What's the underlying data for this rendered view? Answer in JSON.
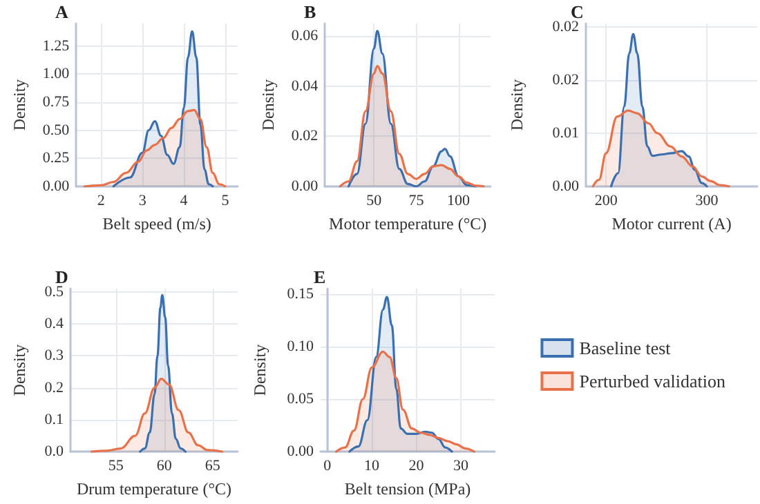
{
  "chart_data": [
    {
      "type": "area",
      "title": "A",
      "xlabel": "Belt speed (m/s)",
      "ylabel": "Density",
      "xlim": [
        1.4,
        5.3
      ],
      "xticks": [
        2,
        3,
        4,
        5
      ],
      "ylim": [
        0,
        1.45
      ],
      "yticks": [
        {
          "value": 0,
          "label": "0.00"
        },
        {
          "value": 0.25,
          "label": "0.25"
        },
        {
          "value": 0.5,
          "label": "0.50"
        },
        {
          "value": 0.75,
          "label": "0.75"
        },
        {
          "value": 1,
          "label": "1.00"
        },
        {
          "value": 1.25,
          "label": "1.25"
        }
      ],
      "grid": true,
      "marker": "none",
      "series": [
        {
          "color": "#3a6fb0",
          "x": [
            2.3,
            2.7,
            3.0,
            3.15,
            3.3,
            3.45,
            3.6,
            3.75,
            3.9,
            4.0,
            4.1,
            4.2,
            4.3,
            4.4,
            4.5,
            4.6,
            4.7
          ],
          "values": [
            0,
            0.08,
            0.3,
            0.5,
            0.58,
            0.45,
            0.28,
            0.2,
            0.35,
            0.7,
            1.15,
            1.38,
            1.15,
            0.55,
            0.15,
            0.02,
            0
          ]
        },
        {
          "color": "#e8714a",
          "x": [
            1.6,
            2.0,
            2.3,
            2.6,
            2.9,
            3.1,
            3.3,
            3.5,
            3.7,
            3.9,
            4.1,
            4.25,
            4.4,
            4.55,
            4.7,
            4.85,
            5.0
          ],
          "values": [
            0,
            0.01,
            0.04,
            0.12,
            0.22,
            0.32,
            0.37,
            0.43,
            0.52,
            0.6,
            0.67,
            0.68,
            0.6,
            0.35,
            0.12,
            0.02,
            0
          ]
        }
      ]
    },
    {
      "type": "area",
      "title": "B",
      "xlabel": "Motor temperature (°C)",
      "ylabel": "Density",
      "xlim": [
        21,
        119
      ],
      "xticks": [
        50,
        75,
        100
      ],
      "ylim": [
        0,
        0.065
      ],
      "yticks": [
        {
          "value": 0,
          "label": "0.00"
        },
        {
          "value": 0.02,
          "label": "0.02"
        },
        {
          "value": 0.04,
          "label": "0.04"
        },
        {
          "value": 0.06,
          "label": "0.06"
        }
      ],
      "grid": true,
      "marker": "none",
      "series": [
        {
          "color": "#3a6fb0",
          "x": [
            35,
            40,
            45,
            50,
            52,
            55,
            60,
            65,
            70,
            75,
            80,
            85,
            90,
            92,
            95,
            100,
            105,
            110
          ],
          "values": [
            0,
            0.005,
            0.025,
            0.055,
            0.062,
            0.053,
            0.025,
            0.007,
            0.001,
            0,
            0.002,
            0.008,
            0.014,
            0.015,
            0.012,
            0.004,
            0.0005,
            0
          ]
        },
        {
          "color": "#e8714a",
          "x": [
            30,
            35,
            40,
            45,
            50,
            52,
            55,
            60,
            65,
            70,
            75,
            80,
            85,
            90,
            95,
            100,
            105,
            110,
            115
          ],
          "values": [
            0,
            0.002,
            0.01,
            0.03,
            0.045,
            0.048,
            0.045,
            0.03,
            0.013,
            0.005,
            0.003,
            0.005,
            0.008,
            0.0085,
            0.007,
            0.004,
            0.0015,
            0.0003,
            0
          ]
        }
      ]
    },
    {
      "type": "area",
      "title": "C",
      "xlabel": "Motor current (A)",
      "ylabel": "Density",
      "xlim": [
        180,
        350
      ],
      "xticks": [
        200,
        300
      ],
      "ylim": [
        0,
        0.0245
      ],
      "yticks": [
        {
          "value": 0,
          "label": "0.00"
        },
        {
          "value": 0.008,
          "label": "0.01"
        },
        {
          "value": 0.016,
          "label": "0.02"
        },
        {
          "value": 0.024,
          "label": "0.02"
        }
      ],
      "grid": true,
      "marker": "none",
      "series": [
        {
          "color": "#3a6fb0",
          "x": [
            205,
            212,
            218,
            223,
            227,
            231,
            236,
            241,
            246,
            255,
            265,
            275,
            282,
            288,
            295,
            300
          ],
          "values": [
            0,
            0.002,
            0.012,
            0.02,
            0.0229,
            0.02,
            0.012,
            0.006,
            0.0046,
            0.0048,
            0.005,
            0.0053,
            0.0045,
            0.0025,
            0.0005,
            0
          ]
        },
        {
          "color": "#e8714a",
          "x": [
            187,
            193,
            200,
            211,
            222,
            231,
            242,
            251,
            264,
            275,
            286,
            295,
            304,
            313,
            322
          ],
          "values": [
            0,
            0.001,
            0.005,
            0.0105,
            0.0114,
            0.011,
            0.0095,
            0.008,
            0.006,
            0.0045,
            0.003,
            0.0015,
            0.0008,
            0.0002,
            0
          ]
        }
      ]
    },
    {
      "type": "area",
      "title": "D",
      "xlabel": "Drum temperature (°C)",
      "ylabel": "Density",
      "xlim": [
        50.3,
        67.6
      ],
      "xticks": [
        55,
        60,
        65
      ],
      "ylim": [
        0,
        0.51
      ],
      "yticks": [
        {
          "value": 0,
          "label": "0.0"
        },
        {
          "value": 0.1,
          "label": "0.1"
        },
        {
          "value": 0.2,
          "label": "0.2"
        },
        {
          "value": 0.3,
          "label": "0.3"
        },
        {
          "value": 0.4,
          "label": "0.4"
        },
        {
          "value": 0.5,
          "label": "0.5"
        }
      ],
      "grid": true,
      "marker": "none",
      "series": [
        {
          "color": "#3a6fb0",
          "x": [
            57.5,
            58,
            58.5,
            59,
            59.3,
            59.6,
            59.8,
            60.1,
            60.4,
            60.8,
            61.2,
            61.7,
            62.2
          ],
          "values": [
            0,
            0.01,
            0.06,
            0.18,
            0.3,
            0.45,
            0.49,
            0.42,
            0.27,
            0.12,
            0.04,
            0.01,
            0
          ]
        },
        {
          "color": "#e8714a",
          "x": [
            52.5,
            54,
            55.5,
            57,
            58,
            59,
            59.7,
            60.5,
            61.5,
            62.5,
            63.5,
            64.5,
            66
          ],
          "values": [
            0,
            0.003,
            0.01,
            0.05,
            0.12,
            0.2,
            0.228,
            0.21,
            0.13,
            0.06,
            0.02,
            0.005,
            0
          ]
        }
      ]
    },
    {
      "type": "area",
      "title": "E",
      "xlabel": "Belt tension (MPa)",
      "ylabel": "Density",
      "xlim": [
        -1.5,
        37.6
      ],
      "xticks": [
        0,
        10,
        20,
        30
      ],
      "ylim": [
        0,
        0.155
      ],
      "yticks": [
        {
          "value": 0,
          "label": "0.00"
        },
        {
          "value": 0.05,
          "label": "0.05"
        },
        {
          "value": 0.1,
          "label": "0.10"
        },
        {
          "value": 0.15,
          "label": "0.15"
        }
      ],
      "grid": true,
      "marker": "none",
      "legend": "right",
      "series": [
        {
          "name": "Baseline test",
          "color": "#3a6fb0",
          "x": [
            5,
            7,
            9,
            11,
            12.5,
            13.4,
            14.5,
            15.5,
            16.5,
            18,
            20,
            22,
            23.5,
            25,
            26.5,
            28
          ],
          "values": [
            0,
            0.005,
            0.03,
            0.09,
            0.135,
            0.147,
            0.12,
            0.06,
            0.022,
            0.017,
            0.017,
            0.019,
            0.018,
            0.012,
            0.004,
            0
          ]
        },
        {
          "name": "Perturbed validation",
          "color": "#e8714a",
          "x": [
            2,
            4,
            6,
            8,
            10,
            12.5,
            14,
            15.5,
            17,
            19,
            21,
            23,
            25,
            27,
            29,
            31,
            33
          ],
          "values": [
            0,
            0.004,
            0.02,
            0.05,
            0.08,
            0.095,
            0.09,
            0.07,
            0.04,
            0.022,
            0.018,
            0.016,
            0.013,
            0.01,
            0.007,
            0.003,
            0
          ]
        }
      ]
    }
  ]
}
